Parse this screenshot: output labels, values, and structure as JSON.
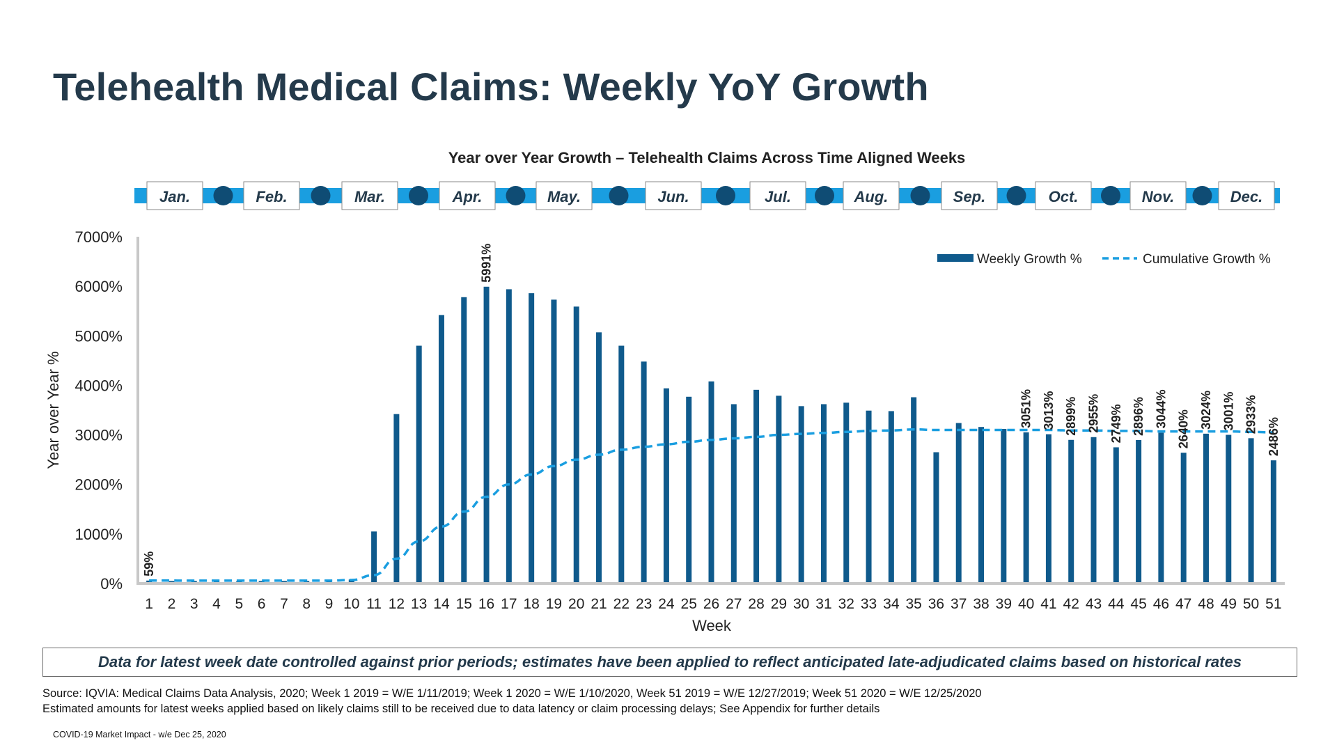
{
  "page": {
    "title": "Telehealth Medical Claims: Weekly YoY Growth",
    "note": "Data for latest week date controlled against prior periods; estimates have been applied to reflect anticipated late-adjudicated claims based on historical rates",
    "source_line1": "Source: IQVIA: Medical Claims Data Analysis, 2020; Week 1 2019 = W/E 1/11/2019; Week 1 2020 = W/E 1/10/2020, Week 51 2019 = W/E 12/27/2019; Week 51 2020 = W/E 12/25/2020",
    "source_line2": "Estimated amounts for latest weeks applied based on likely claims still to be received due to data latency or claim processing delays; See Appendix for further details",
    "footer": "COVID-19 Market Impact - w/e Dec 25, 2020"
  },
  "timeline": {
    "months": [
      "Jan.",
      "Feb.",
      "Mar.",
      "Apr.",
      "May.",
      "Jun.",
      "Jul.",
      "Aug.",
      "Sep.",
      "Oct.",
      "Nov.",
      "Dec."
    ],
    "bar_color": "#1a9ee0",
    "dot_color": "#0f4c74"
  },
  "colors": {
    "bar": "#0f5a8c",
    "line": "#1a9ee0",
    "title": "#243a4b"
  },
  "chart_data": {
    "type": "bar",
    "title": "Year over Year Growth – Telehealth Claims Across Time Aligned Weeks",
    "xlabel": "Week",
    "ylabel": "Year over Year %",
    "ylim": [
      0,
      7000
    ],
    "yticks": [
      "0%",
      "1000%",
      "2000%",
      "3000%",
      "4000%",
      "5000%",
      "6000%",
      "7000%"
    ],
    "legend_position": "top-right",
    "categories": [
      "1",
      "2",
      "3",
      "4",
      "5",
      "6",
      "7",
      "8",
      "9",
      "10",
      "11",
      "12",
      "13",
      "14",
      "15",
      "16",
      "17",
      "18",
      "19",
      "20",
      "21",
      "22",
      "23",
      "24",
      "25",
      "26",
      "27",
      "28",
      "29",
      "30",
      "31",
      "32",
      "33",
      "34",
      "35",
      "36",
      "37",
      "38",
      "39",
      "40",
      "41",
      "42",
      "43",
      "44",
      "45",
      "46",
      "47",
      "48",
      "49",
      "50",
      "51"
    ],
    "series": [
      {
        "name": "Weekly Growth %",
        "type": "bar",
        "values": [
          59,
          50,
          50,
          50,
          50,
          50,
          50,
          50,
          50,
          80,
          1050,
          3420,
          4800,
          5420,
          5780,
          5991,
          5940,
          5860,
          5730,
          5590,
          5070,
          4800,
          4480,
          3940,
          3770,
          4080,
          3620,
          3910,
          3790,
          3580,
          3620,
          3650,
          3490,
          3480,
          3760,
          2650,
          3240,
          3160,
          3120,
          3051,
          3013,
          2899,
          2955,
          2749,
          2896,
          3044,
          2640,
          3024,
          3001,
          2933,
          2486
        ]
      },
      {
        "name": "Cumulative Growth %",
        "type": "line",
        "style": "dashed",
        "values": [
          59,
          59,
          58,
          57,
          57,
          57,
          57,
          57,
          58,
          70,
          170,
          500,
          850,
          1150,
          1450,
          1750,
          2000,
          2200,
          2370,
          2500,
          2600,
          2700,
          2760,
          2810,
          2860,
          2900,
          2930,
          2960,
          3000,
          3020,
          3040,
          3060,
          3080,
          3090,
          3110,
          3100,
          3100,
          3100,
          3100,
          3100,
          3100,
          3090,
          3090,
          3080,
          3080,
          3070,
          3070,
          3070,
          3070,
          3060,
          3050
        ]
      }
    ],
    "data_labels": [
      {
        "week": "1",
        "label": "59%"
      },
      {
        "week": "16",
        "label": "5991%"
      },
      {
        "week": "40",
        "label": "3051%"
      },
      {
        "week": "41",
        "label": "3013%"
      },
      {
        "week": "42",
        "label": "2899%"
      },
      {
        "week": "43",
        "label": "2955%"
      },
      {
        "week": "44",
        "label": "2749%"
      },
      {
        "week": "45",
        "label": "2896%"
      },
      {
        "week": "46",
        "label": "3044%"
      },
      {
        "week": "47",
        "label": "2640%"
      },
      {
        "week": "48",
        "label": "3024%"
      },
      {
        "week": "49",
        "label": "3001%"
      },
      {
        "week": "50",
        "label": "2933%"
      },
      {
        "week": "51",
        "label": "2486%"
      }
    ]
  }
}
